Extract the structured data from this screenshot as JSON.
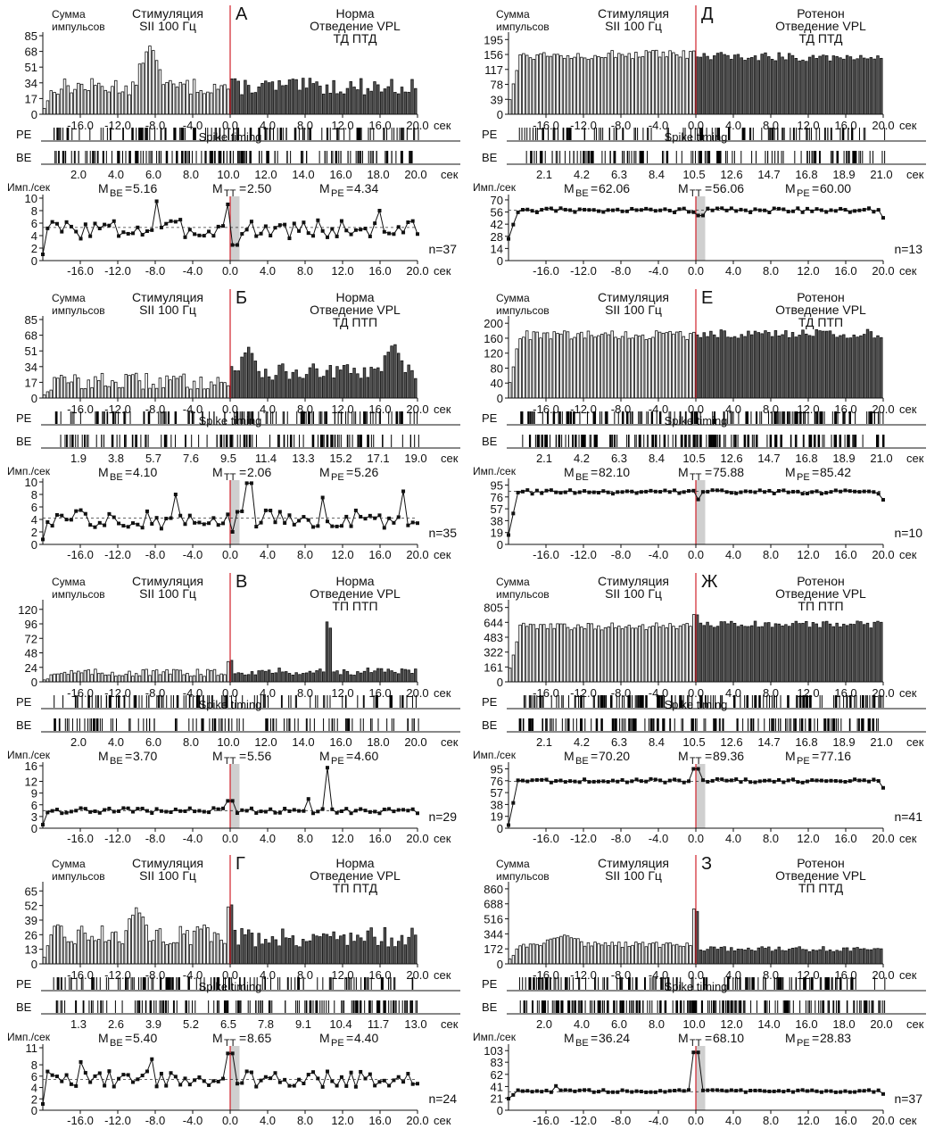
{
  "labels": {
    "sum_line1": "Сумма",
    "sum_line2": "импульсов",
    "stim_line1": "Стимуляция",
    "stim_line2": "SII 100 Гц",
    "spike_timing": "Spike timing",
    "rate_unit": "Имп./сек",
    "sec": "сек",
    "pe": "PE",
    "be": "BE"
  },
  "x_ticks": [
    -16.0,
    -12.0,
    -8.0,
    -4.0,
    0.0,
    4.0,
    8.0,
    12.0,
    16.0,
    20.0
  ],
  "panels": [
    {
      "id": "A",
      "letter": "А",
      "cond": "Норма",
      "lead": "Отведение VPL",
      "code": "ТД ПТД",
      "hist_y": [
        0,
        17,
        34,
        51,
        68,
        85
      ],
      "hist_max": 85,
      "hist_profile": {
        "base_pre": 30,
        "base_post": 30,
        "noise": 9,
        "peaks": [
          [
            -8.5,
            75,
            1.2
          ]
        ]
      },
      "raster_ticks": [
        "2.0",
        "4.0",
        "6.0",
        "8.0",
        "10.0",
        "12.0",
        "14.0",
        "16.0",
        "18.0",
        "20.0"
      ],
      "raster_pe_density": 0.35,
      "raster_be_density": 0.55,
      "m_be": "5.16",
      "m_tt": "2.50",
      "m_pe": "4.34",
      "rate_y": [
        0,
        2,
        4,
        6,
        8,
        10
      ],
      "rate_max": 10,
      "rate_mean": 5.3,
      "rate_profile": {
        "base": 5,
        "noise": 1.6,
        "peaks": [
          [
            -8,
            9.5
          ],
          [
            -0.3,
            9
          ],
          [
            16,
            8
          ]
        ],
        "dip": [
          0.5,
          2.5
        ]
      },
      "n": "n=37"
    },
    {
      "id": "B",
      "letter": "Б",
      "cond": "Норма",
      "lead": "Отведение VPL",
      "code": "ТД ПТП",
      "hist_y": [
        0,
        17,
        34,
        51,
        68,
        85
      ],
      "hist_max": 85,
      "hist_profile": {
        "base_pre": 18,
        "base_post": 28,
        "noise": 9,
        "peaks": [
          [
            2,
            55,
            1
          ],
          [
            17.5,
            60,
            1
          ]
        ]
      },
      "raster_ticks": [
        "1.9",
        "3.8",
        "5.7",
        "7.6",
        "9.5",
        "11.4",
        "13.3",
        "15.2",
        "17.1",
        "19.0"
      ],
      "raster_pe_density": 0.35,
      "raster_be_density": 0.35,
      "m_be": "4.10",
      "m_tt": "2.06",
      "m_pe": "5.26",
      "rate_y": [
        0,
        2,
        4,
        6,
        8,
        10
      ],
      "rate_max": 10,
      "rate_mean": 4.2,
      "rate_profile": {
        "base": 4,
        "noise": 1.5,
        "peaks": [
          [
            -6,
            8
          ],
          [
            2,
            9.8
          ],
          [
            10,
            7.5
          ],
          [
            18.5,
            8.5
          ]
        ],
        "dip": [
          0.2,
          2
        ]
      },
      "n": "n=35"
    },
    {
      "id": "V",
      "letter": "В",
      "cond": "Норма",
      "lead": "Отведение VPL",
      "code": "ТП ПТП",
      "hist_y": [
        0,
        24,
        48,
        72,
        96,
        120
      ],
      "hist_max": 130,
      "hist_profile": {
        "base_pre": 15,
        "base_post": 17,
        "noise": 6,
        "peaks": [
          [
            10.5,
            115,
            0.5
          ],
          [
            0,
            40,
            0.5
          ]
        ]
      },
      "raster_ticks": [
        "2.0",
        "4.0",
        "6.0",
        "8.0",
        "10.0",
        "12.0",
        "14.0",
        "16.0",
        "18.0",
        "20.0"
      ],
      "raster_pe_density": 0.3,
      "raster_be_density": 0.25,
      "m_be": "3.70",
      "m_tt": "5.56",
      "m_pe": "4.60",
      "rate_y": [
        0,
        3,
        6,
        9,
        12,
        16
      ],
      "rate_max": 16,
      "rate_mean": 4.5,
      "rate_profile": {
        "base": 4.5,
        "noise": 0.7,
        "peaks": [
          [
            10.5,
            15.5
          ],
          [
            8.5,
            7.5
          ],
          [
            0,
            7
          ]
        ],
        "dip": null
      },
      "n": "n=29"
    },
    {
      "id": "G",
      "letter": "Г",
      "cond": "Норма",
      "lead": "Отведение VPL",
      "code": "ТП ПТД",
      "hist_y": [
        0,
        13,
        26,
        39,
        52,
        65
      ],
      "hist_max": 70,
      "hist_profile": {
        "base_pre": 26,
        "base_post": 24,
        "noise": 9,
        "peaks": [
          [
            0,
            60,
            0.5
          ],
          [
            -10,
            50,
            1
          ]
        ]
      },
      "raster_ticks": [
        "1.3",
        "2.6",
        "3.9",
        "5.2",
        "6.5",
        "7.8",
        "9.1",
        "10.4",
        "11.7",
        "13.0"
      ],
      "raster_pe_density": 0.35,
      "raster_be_density": 0.45,
      "m_be": "5.40",
      "m_tt": "8.65",
      "m_pe": "4.40",
      "rate_y": [
        0,
        2,
        4,
        6,
        8,
        11
      ],
      "rate_max": 11,
      "rate_mean": 5.4,
      "rate_profile": {
        "base": 5.5,
        "noise": 1.4,
        "peaks": [
          [
            -16,
            8.5
          ],
          [
            -8.5,
            9
          ],
          [
            0,
            10
          ]
        ],
        "dip": null
      },
      "n": "n=24"
    },
    {
      "id": "D",
      "letter": "Д",
      "cond": "Ротенон",
      "lead": "Отведение VPL",
      "code": "ТД ПТД",
      "hist_y": [
        0,
        39,
        78,
        117,
        156,
        195
      ],
      "hist_max": 205,
      "hist_profile": {
        "base_pre": 155,
        "base_post": 150,
        "noise": 12,
        "peaks": []
      },
      "raster_ticks": [
        "2.1",
        "4.2",
        "6.3",
        "8.4",
        "10.5",
        "12.6",
        "14.7",
        "16.8",
        "18.9",
        "21.0"
      ],
      "raster_pe_density": 0.3,
      "raster_be_density": 0.35,
      "m_be": "62.06",
      "m_tt": "56.06",
      "m_pe": "60.00",
      "rate_y": [
        0,
        14,
        28,
        42,
        56,
        70
      ],
      "rate_max": 72,
      "rate_mean": 58,
      "rate_profile": {
        "base": 58,
        "noise": 2.5,
        "peaks": [],
        "dip": [
          0.5,
          52
        ],
        "start": 25
      },
      "n": "n=13"
    },
    {
      "id": "E",
      "letter": "Е",
      "cond": "Ротенон",
      "lead": "Отведение VPL",
      "code": "ТД ПТП",
      "hist_y": [
        0,
        40,
        80,
        120,
        160,
        200
      ],
      "hist_max": 210,
      "hist_profile": {
        "base_pre": 168,
        "base_post": 172,
        "noise": 12,
        "peaks": []
      },
      "raster_ticks": [
        "2.1",
        "4.2",
        "6.3",
        "8.4",
        "10.5",
        "12.6",
        "14.7",
        "16.8",
        "18.9",
        "21.0"
      ],
      "raster_pe_density": 0.6,
      "raster_be_density": 0.6,
      "m_be": "82.10",
      "m_tt": "75.88",
      "m_pe": "85.42",
      "rate_y": [
        0,
        19,
        38,
        57,
        76,
        95
      ],
      "rate_max": 100,
      "rate_mean": 85,
      "rate_profile": {
        "base": 84,
        "noise": 3,
        "peaks": [],
        "dip": [
          0.3,
          72
        ],
        "start": 15
      },
      "n": "n=10"
    },
    {
      "id": "Zh",
      "letter": "Ж",
      "cond": "Ротенон",
      "lead": "Отведение VPL",
      "code": "ТП ПТП",
      "hist_y": [
        0,
        161,
        322,
        483,
        644,
        805
      ],
      "hist_max": 850,
      "hist_profile": {
        "base_pre": 600,
        "base_post": 620,
        "noise": 40,
        "peaks": [
          [
            0,
            760,
            0.5
          ]
        ]
      },
      "raster_ticks": [
        "2.1",
        "4.2",
        "6.3",
        "8.4",
        "10.5",
        "12.6",
        "14.7",
        "16.8",
        "18.9",
        "21.0"
      ],
      "raster_pe_density": 0.6,
      "raster_be_density": 0.55,
      "m_be": "70.20",
      "m_tt": "89.36",
      "m_pe": "77.16",
      "rate_y": [
        0,
        19,
        38,
        57,
        76,
        95
      ],
      "rate_max": 100,
      "rate_mean": 75,
      "rate_profile": {
        "base": 76,
        "noise": 3,
        "peaks": [
          [
            0,
            95
          ]
        ],
        "dip": null,
        "start": 5
      },
      "n": "n=41"
    },
    {
      "id": "Z",
      "letter": "З",
      "cond": "Ротенон",
      "lead": "Отведение VPL",
      "code": "ТП ПТД",
      "hist_y": [
        0,
        172,
        344,
        516,
        688,
        860
      ],
      "hist_max": 900,
      "hist_profile": {
        "base_pre": 220,
        "base_post": 170,
        "noise": 30,
        "peaks": [
          [
            0,
            860,
            0.3
          ],
          [
            -14,
            330,
            2
          ]
        ]
      },
      "raster_ticks": [
        "2.0",
        "4.0",
        "6.0",
        "8.0",
        "10.0",
        "12.0",
        "14.0",
        "16.0",
        "18.0",
        "20.0"
      ],
      "raster_pe_density": 0.45,
      "raster_be_density": 0.75,
      "m_be": "36.24",
      "m_tt": "68.10",
      "m_pe": "28.83",
      "rate_y": [
        0,
        21,
        41,
        62,
        83,
        103
      ],
      "rate_max": 108,
      "rate_mean": 32,
      "rate_profile": {
        "base": 33,
        "noise": 2,
        "peaks": [
          [
            0,
            100
          ],
          [
            -15,
            42
          ]
        ],
        "dip": null,
        "start": 20
      },
      "n": "n=37"
    }
  ]
}
